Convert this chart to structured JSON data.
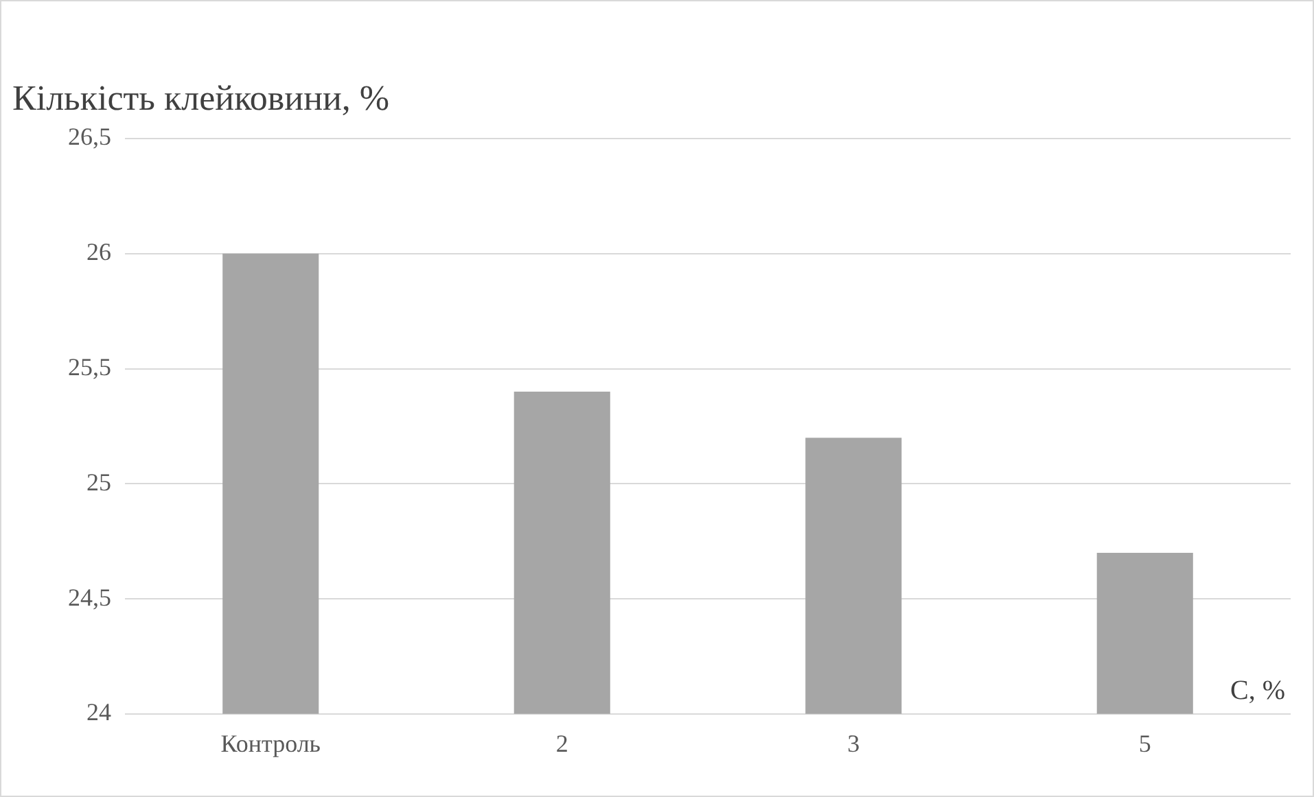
{
  "chart_data": {
    "type": "bar",
    "title": "Кількість клейковини, %",
    "xlabel": "C, %",
    "categories": [
      "Контроль",
      "2",
      "3",
      "5"
    ],
    "values": [
      26,
      25.4,
      25.2,
      24.7
    ],
    "color": "#a6a6a6",
    "ylim": [
      24,
      26.5
    ],
    "yticks": [
      {
        "value": 24,
        "label": "24"
      },
      {
        "value": 24.5,
        "label": "24,5"
      },
      {
        "value": 25,
        "label": "25"
      },
      {
        "value": 25.5,
        "label": "25,5"
      },
      {
        "value": 26,
        "label": "26"
      },
      {
        "value": 26.5,
        "label": "26,5"
      }
    ],
    "grid": "y"
  }
}
